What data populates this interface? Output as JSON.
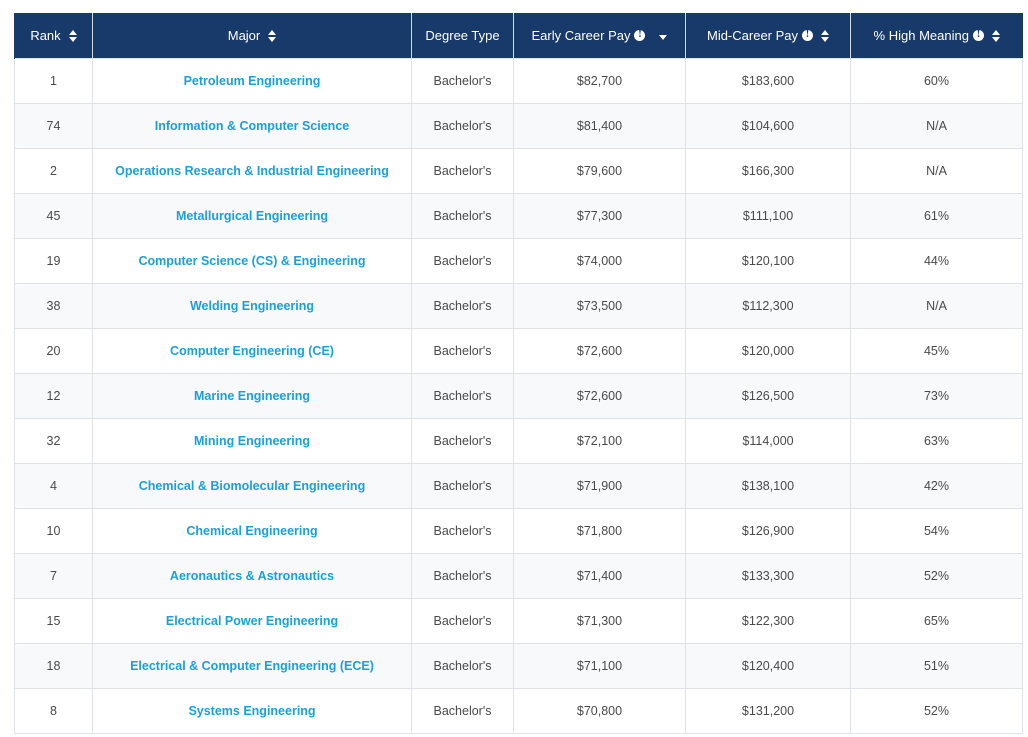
{
  "columns": [
    {
      "label": "Rank",
      "sort": "both"
    },
    {
      "label": "Major",
      "sort": "both"
    },
    {
      "label": "Degree Type",
      "sort": "none"
    },
    {
      "label": "Early Career Pay",
      "sort": "desc",
      "info": true
    },
    {
      "label": "Mid-Career Pay",
      "sort": "both",
      "info": true
    },
    {
      "label": "% High Meaning",
      "sort": "both",
      "info": true
    }
  ],
  "rows": [
    {
      "rank": "1",
      "major": "Petroleum Engineering",
      "degree": "Bachelor's",
      "early": "$82,700",
      "mid": "$183,600",
      "meaning": "60%"
    },
    {
      "rank": "74",
      "major": "Information & Computer Science",
      "degree": "Bachelor's",
      "early": "$81,400",
      "mid": "$104,600",
      "meaning": "N/A"
    },
    {
      "rank": "2",
      "major": "Operations Research & Industrial Engineering",
      "degree": "Bachelor's",
      "early": "$79,600",
      "mid": "$166,300",
      "meaning": "N/A"
    },
    {
      "rank": "45",
      "major": "Metallurgical Engineering",
      "degree": "Bachelor's",
      "early": "$77,300",
      "mid": "$111,100",
      "meaning": "61%"
    },
    {
      "rank": "19",
      "major": "Computer Science (CS) & Engineering",
      "degree": "Bachelor's",
      "early": "$74,000",
      "mid": "$120,100",
      "meaning": "44%"
    },
    {
      "rank": "38",
      "major": "Welding Engineering",
      "degree": "Bachelor's",
      "early": "$73,500",
      "mid": "$112,300",
      "meaning": "N/A"
    },
    {
      "rank": "20",
      "major": "Computer Engineering (CE)",
      "degree": "Bachelor's",
      "early": "$72,600",
      "mid": "$120,000",
      "meaning": "45%"
    },
    {
      "rank": "12",
      "major": "Marine Engineering",
      "degree": "Bachelor's",
      "early": "$72,600",
      "mid": "$126,500",
      "meaning": "73%"
    },
    {
      "rank": "32",
      "major": "Mining Engineering",
      "degree": "Bachelor's",
      "early": "$72,100",
      "mid": "$114,000",
      "meaning": "63%"
    },
    {
      "rank": "4",
      "major": "Chemical & Biomolecular Engineering",
      "degree": "Bachelor's",
      "early": "$71,900",
      "mid": "$138,100",
      "meaning": "42%"
    },
    {
      "rank": "10",
      "major": "Chemical Engineering",
      "degree": "Bachelor's",
      "early": "$71,800",
      "mid": "$126,900",
      "meaning": "54%"
    },
    {
      "rank": "7",
      "major": "Aeronautics & Astronautics",
      "degree": "Bachelor's",
      "early": "$71,400",
      "mid": "$133,300",
      "meaning": "52%"
    },
    {
      "rank": "15",
      "major": "Electrical Power Engineering",
      "degree": "Bachelor's",
      "early": "$71,300",
      "mid": "$122,300",
      "meaning": "65%"
    },
    {
      "rank": "18",
      "major": "Electrical & Computer Engineering (ECE)",
      "degree": "Bachelor's",
      "early": "$71,100",
      "mid": "$120,400",
      "meaning": "51%"
    },
    {
      "rank": "8",
      "major": "Systems Engineering",
      "degree": "Bachelor's",
      "early": "$70,800",
      "mid": "$131,200",
      "meaning": "52%"
    }
  ]
}
